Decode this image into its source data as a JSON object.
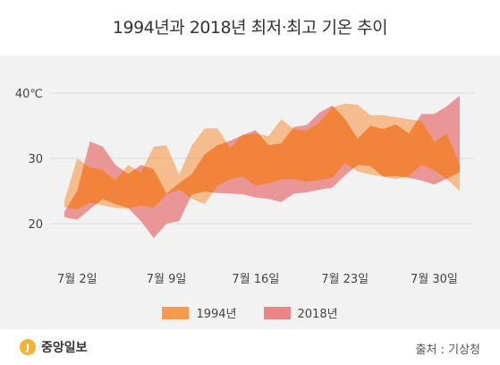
{
  "chart_data": {
    "type": "area",
    "title": "1994년과 2018년 최저·최고 기온 추이",
    "x_start": "7월 1일",
    "x_tick_labels": [
      "7월 2일",
      "7월 9일",
      "7월 16일",
      "7월 23일",
      "7월 30일"
    ],
    "x_tick_days": [
      2,
      9,
      16,
      23,
      30
    ],
    "y_tick_labels": [
      "40℃",
      "30",
      "20"
    ],
    "y_ticks": [
      40,
      30,
      20
    ],
    "ylim": [
      15,
      42
    ],
    "legend_position": "bottom",
    "colors": {
      "1994": "#f79a4b",
      "2018": "#ea8686",
      "overlap": "#f1843a"
    },
    "series": [
      {
        "name": "1994년",
        "days": [
          1,
          2,
          3,
          4,
          5,
          6,
          7,
          8,
          9,
          10,
          11,
          12,
          13,
          14,
          15,
          16,
          17,
          18,
          19,
          20,
          21,
          22,
          23,
          24,
          25,
          26,
          27,
          28,
          29,
          30,
          31,
          32
        ],
        "min": [
          22.5,
          22.2,
          23.2,
          22.8,
          22.4,
          22.3,
          22.8,
          22.4,
          24.5,
          25.2,
          23.8,
          23.0,
          25.8,
          26.8,
          27.2,
          25.8,
          26.2,
          26.8,
          26.8,
          26.4,
          26.7,
          27.0,
          29.3,
          28.0,
          27.5,
          27.2,
          26.8,
          27.3,
          29.0,
          28.2,
          26.8,
          25.0
        ],
        "max": [
          23.5,
          30.0,
          28.6,
          28.2,
          26.6,
          29.0,
          27.8,
          31.8,
          32.0,
          27.5,
          32.0,
          34.6,
          34.6,
          31.6,
          33.6,
          33.8,
          33.4,
          36.0,
          34.5,
          34.2,
          35.5,
          37.8,
          38.4,
          38.2,
          36.6,
          36.6,
          36.3,
          36.0,
          35.7,
          32.5,
          33.8,
          29.0
        ]
      },
      {
        "name": "2018년",
        "days": [
          1,
          2,
          3,
          4,
          5,
          6,
          7,
          8,
          9,
          10,
          11,
          12,
          13,
          14,
          15,
          16,
          17,
          18,
          19,
          20,
          21,
          22,
          23,
          24,
          25,
          26,
          27,
          28,
          29,
          30,
          31,
          32
        ],
        "min": [
          21.0,
          20.6,
          22.2,
          23.8,
          23.0,
          22.4,
          20.4,
          17.8,
          20.0,
          20.4,
          24.5,
          24.9,
          24.7,
          24.6,
          24.5,
          24.0,
          23.8,
          23.3,
          24.6,
          24.8,
          25.2,
          25.5,
          27.4,
          29.0,
          28.8,
          27.2,
          27.3,
          27.0,
          26.6,
          26.0,
          26.9,
          27.9
        ],
        "max": [
          21.8,
          25.0,
          32.6,
          31.8,
          29.0,
          27.6,
          29.0,
          28.3,
          24.6,
          26.2,
          27.6,
          30.6,
          32.0,
          32.7,
          33.6,
          34.3,
          32.0,
          32.3,
          34.8,
          35.1,
          37.0,
          38.1,
          36.0,
          33.0,
          35.0,
          34.5,
          35.2,
          33.8,
          36.8,
          36.8,
          38.0,
          39.6
        ]
      }
    ]
  },
  "footer": {
    "logo_mark": "J",
    "logo_text": "중앙일보",
    "source": "출처 : 기상청"
  }
}
